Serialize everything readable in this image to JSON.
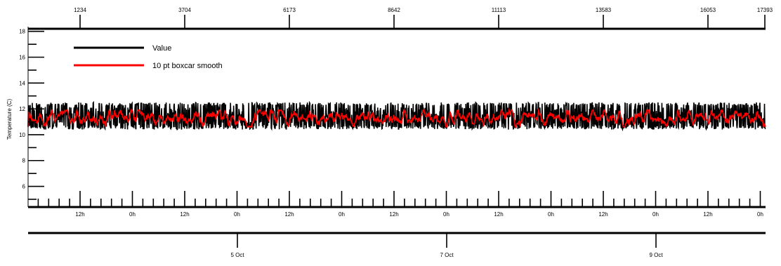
{
  "chart_data": {
    "type": "line",
    "ylabel": "Temperature (C)",
    "ylim": [
      4.4,
      18.2
    ],
    "y_ticks": [
      "6",
      "8",
      "10",
      "12",
      "14",
      "16",
      "18"
    ],
    "top_axis": {
      "label": "",
      "ticks": [
        "1234",
        "3704",
        "6173",
        "8642",
        "11113",
        "13583",
        "16053",
        "17393"
      ]
    },
    "bottom_axis_hours": {
      "ticks": [
        "12h",
        "0h",
        "12h",
        "0h",
        "12h",
        "0h",
        "12h",
        "0h",
        "12h",
        "0h",
        "12h",
        "0h",
        "12h",
        "0h"
      ]
    },
    "bottom_axis_dates": {
      "ticks": [
        "5 Oct",
        "7 Oct",
        "9 Oct"
      ]
    },
    "legend": {
      "placement": "top-left"
    },
    "series": [
      {
        "name": "Value",
        "color": "#000000",
        "mean": 11.3,
        "min": 10.4,
        "max": 12.5
      },
      {
        "name": "10 pt boxcar smooth",
        "color": "#ff0000",
        "mean": 11.2,
        "min": 10.6,
        "max": 11.9
      }
    ],
    "grid": false
  }
}
